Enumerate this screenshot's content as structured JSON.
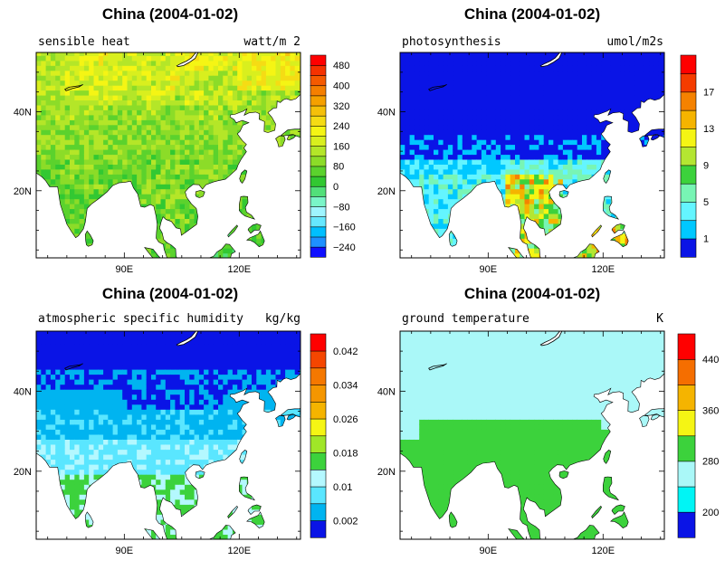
{
  "chart_data": [
    {
      "type": "heatmap",
      "title": "China (2004-01-02)",
      "variable": "sensible heat",
      "units": "watt/m 2",
      "x_ticks": [
        "90E",
        "120E"
      ],
      "y_ticks": [
        "40N",
        "20N"
      ],
      "colorbar_labels": [
        "480",
        "400",
        "320",
        "240",
        "160",
        "80",
        "0",
        "−80",
        "−160",
        "−240"
      ],
      "colorbar_levels": [
        -280,
        -240,
        -200,
        -160,
        -120,
        -80,
        -40,
        0,
        40,
        80,
        120,
        160,
        200,
        240,
        280,
        320,
        360,
        400,
        440,
        480,
        520
      ],
      "colorbar_colors": [
        "#0f0fff",
        "#1e90ff",
        "#00bfff",
        "#66e8ff",
        "#9ff5ff",
        "#7af5c8",
        "#52e07a",
        "#32c832",
        "#5bd22d",
        "#8cdc28",
        "#b4e628",
        "#d9ef1e",
        "#f5f514",
        "#f5dc14",
        "#f5c00a",
        "#f5a000",
        "#f57f00",
        "#f55a00",
        "#f53200",
        "#ff0000"
      ],
      "field_note": "mostly 40-160 over land (green to yellow-green), higher 200-280 in northern belt"
    },
    {
      "type": "heatmap",
      "title": "China (2004-01-02)",
      "variable": "photosynthesis",
      "units": "umol/m2s",
      "x_ticks": [
        "90E",
        "120E"
      ],
      "y_ticks": [
        "40N",
        "20N"
      ],
      "colorbar_labels": [
        "17",
        "13",
        "9",
        "5",
        "1"
      ],
      "colorbar_levels": [
        0,
        1,
        3,
        5,
        7,
        9,
        11,
        13,
        15,
        17,
        19
      ],
      "colorbar_colors": [
        "#0a14e6",
        "#00c8ff",
        "#64f5ff",
        "#78f5b4",
        "#3cd23c",
        "#b4e632",
        "#f5f514",
        "#f5b400",
        "#f58200",
        "#f53c00",
        "#ff0000"
      ]
    },
    {
      "type": "heatmap",
      "title": "China (2004-01-02)",
      "variable": "atmospheric specific humidity",
      "units": "kg/kg",
      "x_ticks": [
        "90E",
        "120E"
      ],
      "y_ticks": [
        "40N",
        "20N"
      ],
      "colorbar_labels": [
        "0.042",
        "0.034",
        "0.026",
        "0.018",
        "0.01",
        "0.002"
      ],
      "colorbar_levels": [
        0,
        0.002,
        0.006,
        0.01,
        0.014,
        0.018,
        0.022,
        0.026,
        0.03,
        0.034,
        0.038,
        0.042,
        0.046
      ],
      "colorbar_colors": [
        "#0a14e6",
        "#00b4f0",
        "#5ae6ff",
        "#b4f8ff",
        "#3cd23c",
        "#a0e628",
        "#f5f514",
        "#f5b400",
        "#f59600",
        "#f57800",
        "#f54600",
        "#ff0000"
      ]
    },
    {
      "type": "heatmap",
      "title": "China (2004-01-02)",
      "variable": "ground temperature",
      "units": "K",
      "x_ticks": [
        "90E",
        "120E"
      ],
      "y_ticks": [
        "40N",
        "20N"
      ],
      "colorbar_labels": [
        "440",
        "360",
        "280",
        "200"
      ],
      "colorbar_levels": [
        160,
        200,
        240,
        280,
        320,
        360,
        400,
        440,
        480
      ],
      "colorbar_colors": [
        "#0a14e6",
        "#00f5f5",
        "#aaf8f8",
        "#3cd23c",
        "#f5f514",
        "#f5b400",
        "#f56e00",
        "#ff0000"
      ]
    }
  ]
}
